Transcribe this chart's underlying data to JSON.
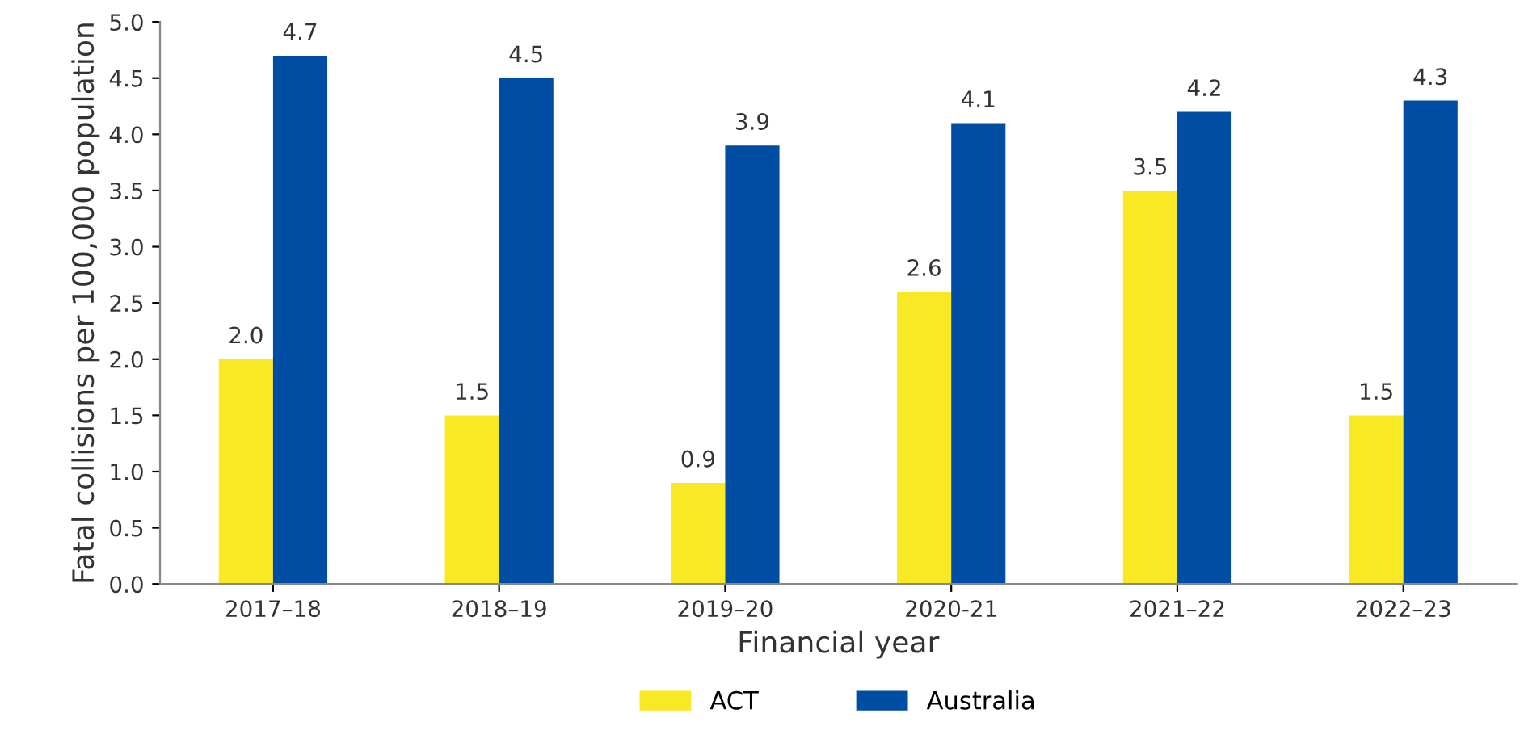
{
  "chart_data": {
    "type": "bar",
    "xlabel": "Financial year",
    "ylabel": "Fatal collisions per 100,000 population",
    "categories": [
      "2017–18",
      "2018–19",
      "2019–20",
      "2020-21",
      "2021–22",
      "2022–23"
    ],
    "series": [
      {
        "name": "ACT",
        "color": "#f9e925",
        "values": [
          2.0,
          1.5,
          0.9,
          2.6,
          3.5,
          1.5
        ],
        "value_labels": [
          "2.0",
          "1.5",
          "0.9",
          "2.6",
          "3.5",
          "1.5"
        ]
      },
      {
        "name": "Australia",
        "color": "#004ea3",
        "values": [
          4.7,
          4.5,
          3.9,
          4.1,
          4.2,
          4.3
        ],
        "value_labels": [
          "4.7",
          "4.5",
          "3.9",
          "4.1",
          "4.2",
          "4.3"
        ]
      }
    ],
    "ylim": [
      0,
      5
    ],
    "yticks": [
      {
        "value": 0,
        "label": "0.0"
      },
      {
        "value": 0.5,
        "label": "0.5"
      },
      {
        "value": 1,
        "label": "1.0"
      },
      {
        "value": 1.5,
        "label": "1.5"
      },
      {
        "value": 2,
        "label": "2.0"
      },
      {
        "value": 2.5,
        "label": "2.5"
      },
      {
        "value": 3,
        "label": "3.0"
      },
      {
        "value": 3.5,
        "label": "3.5"
      },
      {
        "value": 4,
        "label": "4.0"
      },
      {
        "value": 4.5,
        "label": "4.5"
      },
      {
        "value": 5,
        "label": "5.0"
      }
    ],
    "grid": false,
    "legend": "bottom"
  }
}
